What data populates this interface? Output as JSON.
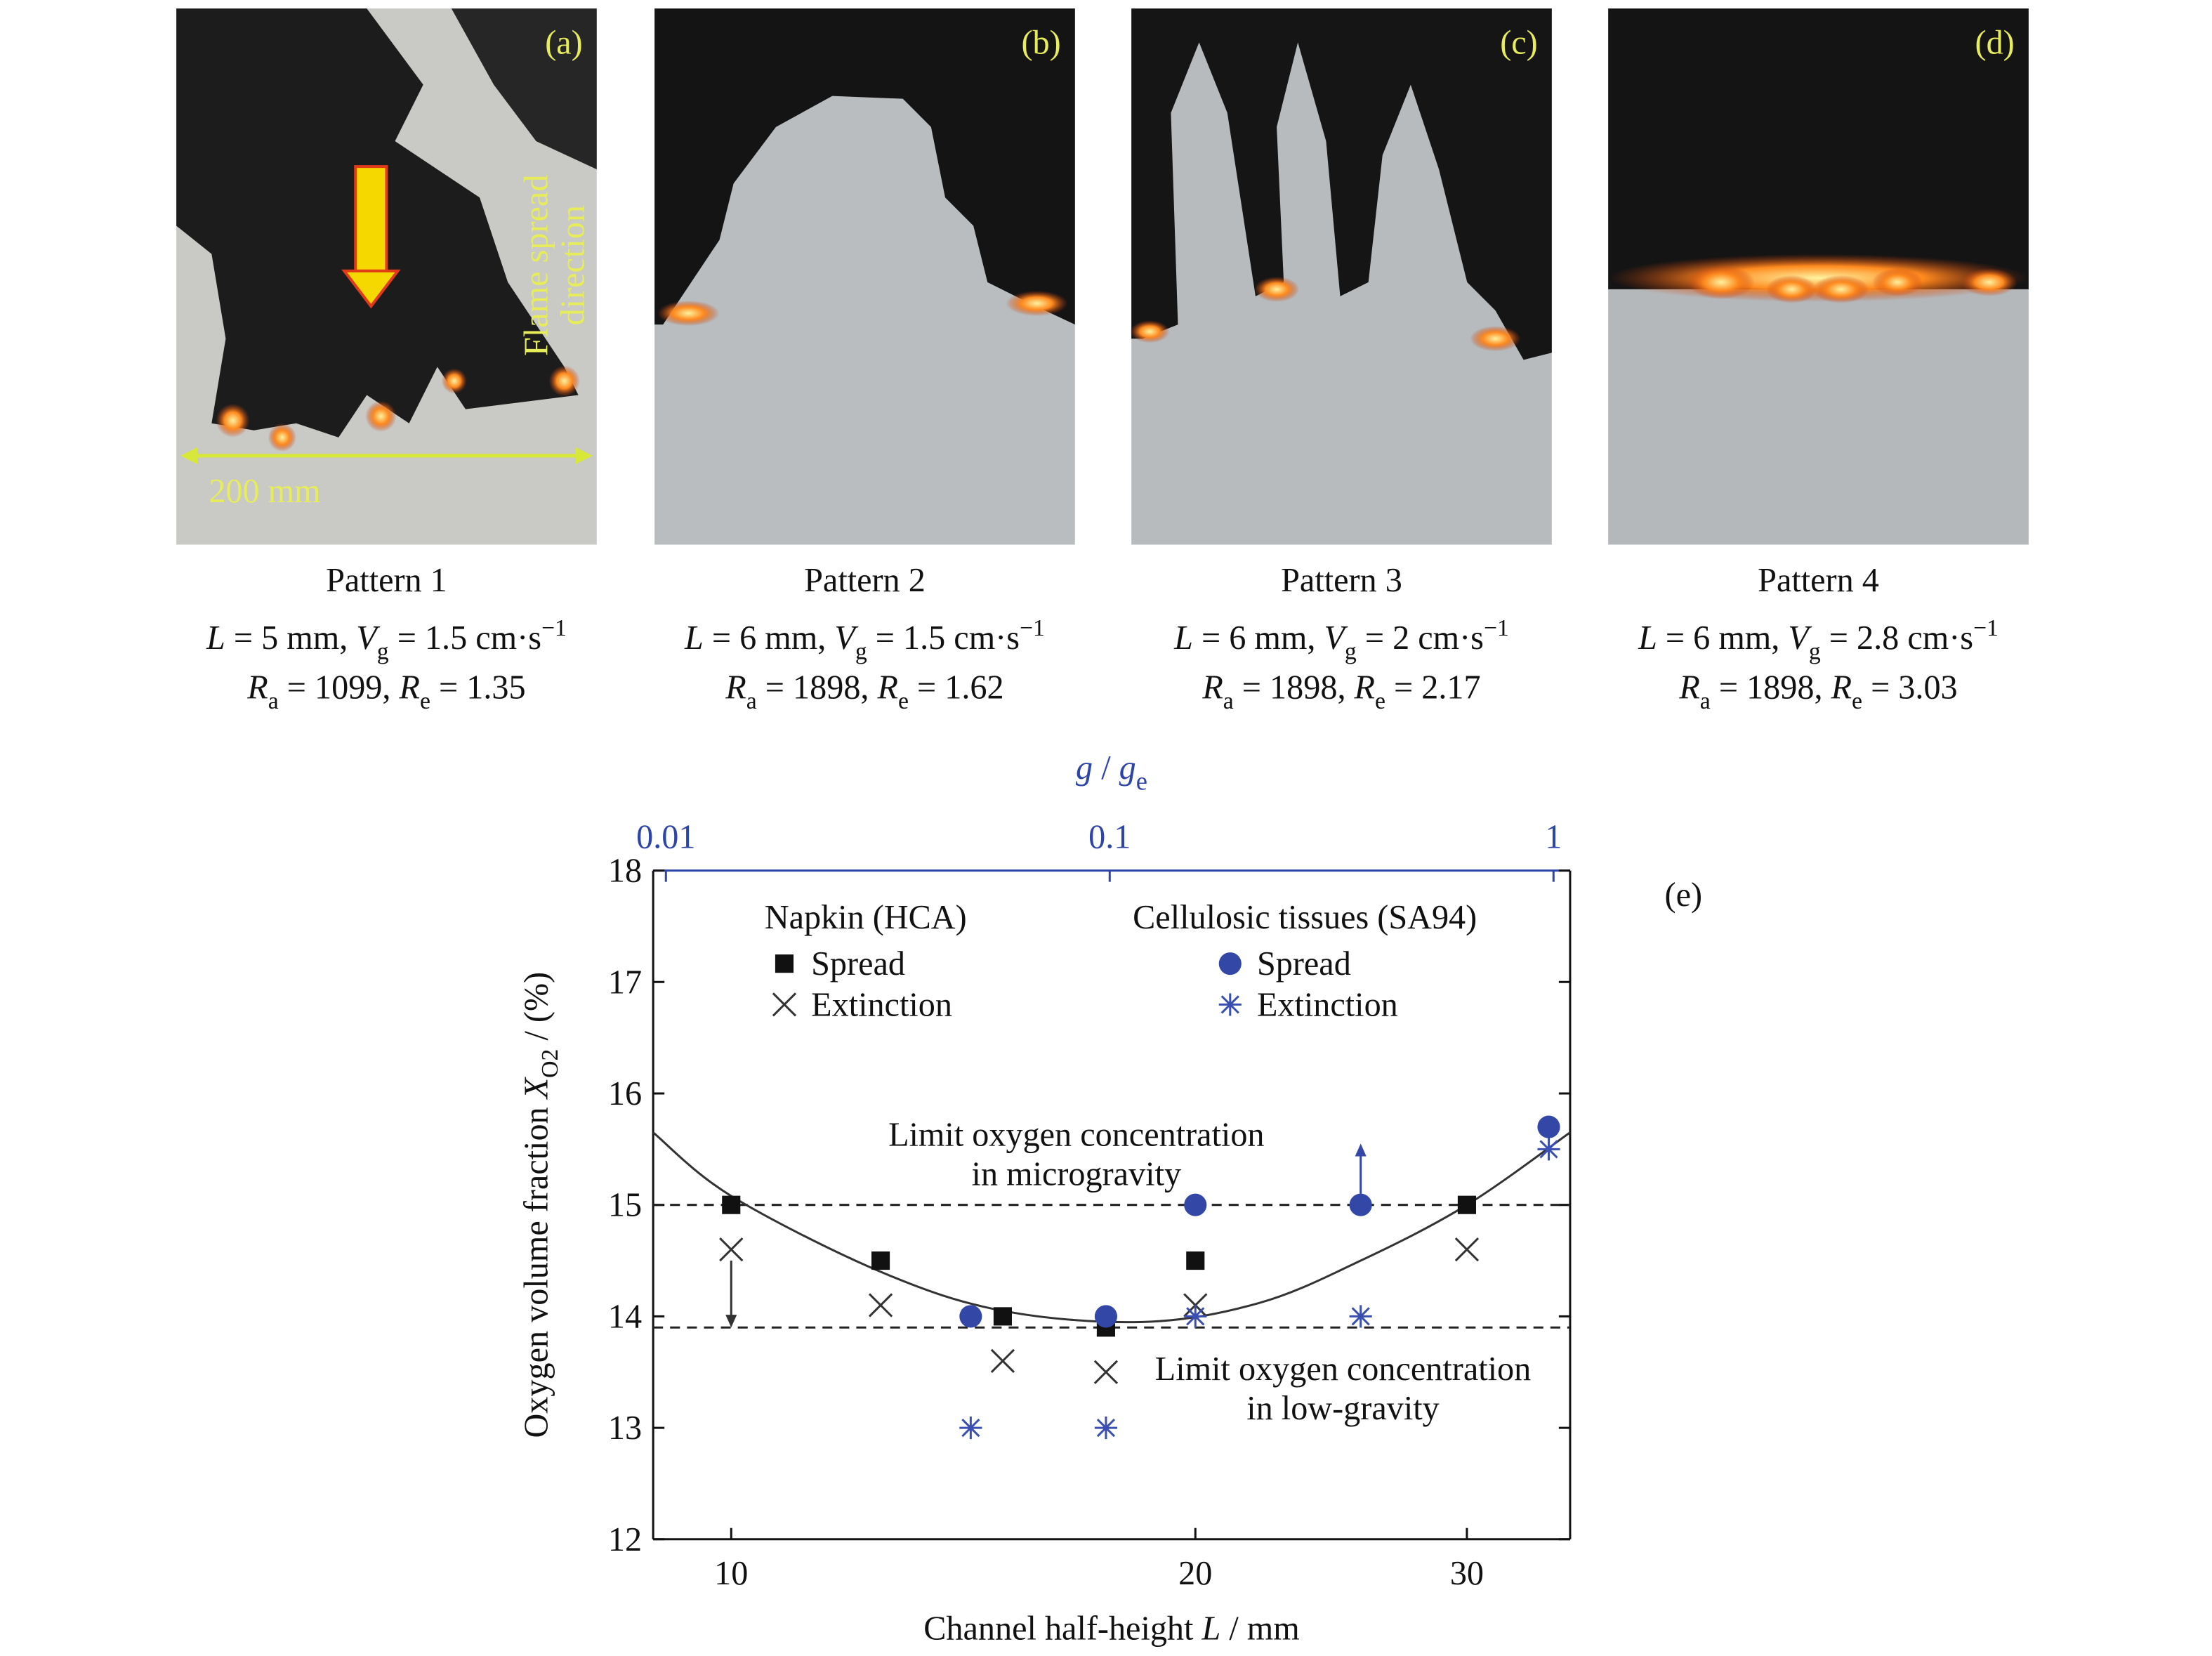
{
  "panels": [
    {
      "label": "(a)",
      "direction_label": [
        "Flame spread",
        "direction"
      ],
      "scale_label": "200 mm",
      "caption": {
        "title": "Pattern 1",
        "line2": [
          {
            "text": "L",
            "style": "i"
          },
          {
            "text": " = 5 mm, "
          },
          {
            "text": "V",
            "style": "i"
          },
          {
            "text": "g",
            "style": "sub"
          },
          {
            "text": " = 1.5 cm·s"
          },
          {
            "text": "−1",
            "style": "sup"
          }
        ],
        "line3": [
          {
            "text": "R",
            "style": "i"
          },
          {
            "text": "a",
            "style": "sub"
          },
          {
            "text": " = 1099, "
          },
          {
            "text": "R",
            "style": "i"
          },
          {
            "text": "e",
            "style": "sub"
          },
          {
            "text": " = 1.35"
          }
        ]
      }
    },
    {
      "label": "(b)",
      "caption": {
        "title": "Pattern 2",
        "line2": [
          {
            "text": "L",
            "style": "i"
          },
          {
            "text": " = 6 mm, "
          },
          {
            "text": "V",
            "style": "i"
          },
          {
            "text": "g",
            "style": "sub"
          },
          {
            "text": " = 1.5 cm·s"
          },
          {
            "text": "−1",
            "style": "sup"
          }
        ],
        "line3": [
          {
            "text": "R",
            "style": "i"
          },
          {
            "text": "a",
            "style": "sub"
          },
          {
            "text": " = 1898, "
          },
          {
            "text": "R",
            "style": "i"
          },
          {
            "text": "e",
            "style": "sub"
          },
          {
            "text": " = 1.62"
          }
        ]
      }
    },
    {
      "label": "(c)",
      "caption": {
        "title": "Pattern 3",
        "line2": [
          {
            "text": "L",
            "style": "i"
          },
          {
            "text": " = 6 mm, "
          },
          {
            "text": "V",
            "style": "i"
          },
          {
            "text": "g",
            "style": "sub"
          },
          {
            "text": " = 2 cm·s"
          },
          {
            "text": "−1",
            "style": "sup"
          }
        ],
        "line3": [
          {
            "text": "R",
            "style": "i"
          },
          {
            "text": "a",
            "style": "sub"
          },
          {
            "text": " = 1898, "
          },
          {
            "text": "R",
            "style": "i"
          },
          {
            "text": "e",
            "style": "sub"
          },
          {
            "text": " = 2.17"
          }
        ]
      }
    },
    {
      "label": "(d)",
      "caption": {
        "title": "Pattern 4",
        "line2": [
          {
            "text": "L",
            "style": "i"
          },
          {
            "text": " = 6 mm, "
          },
          {
            "text": "V",
            "style": "i"
          },
          {
            "text": "g",
            "style": "sub"
          },
          {
            "text": " = 2.8 cm·s"
          },
          {
            "text": "−1",
            "style": "sup"
          }
        ],
        "line3": [
          {
            "text": "R",
            "style": "i"
          },
          {
            "text": "a",
            "style": "sub"
          },
          {
            "text": " = 1898, "
          },
          {
            "text": "R",
            "style": "i"
          },
          {
            "text": "e",
            "style": "sub"
          },
          {
            "text": " = 3.03"
          }
        ]
      }
    }
  ],
  "chart_data": {
    "type": "scatter",
    "panel_label": "(e)",
    "x_label": [
      {
        "text": "Channel half-height "
      },
      {
        "text": "L",
        "style": "i"
      },
      {
        "text": " / mm"
      }
    ],
    "y_label": [
      {
        "text": "Oxygen volume fraction  "
      },
      {
        "text": "X",
        "style": "i"
      },
      {
        "text": "O2",
        "style": "sub"
      },
      {
        "text": " / (%)"
      }
    ],
    "x2_label": [
      {
        "text": "g",
        "style": "i"
      },
      {
        "text": " / "
      },
      {
        "text": "g",
        "style": "i"
      },
      {
        "text": "e",
        "style": "sub"
      }
    ],
    "xscale": "log",
    "xlim": [
      8.9,
      35
    ],
    "xticks": [
      10,
      20,
      30
    ],
    "x2scale": "log",
    "x2lim": [
      0.00936,
      1.09
    ],
    "x2ticks": [
      0.01,
      0.1,
      1
    ],
    "x2_color": "#2e45a8",
    "ylim": [
      12,
      18
    ],
    "yticks": [
      12,
      13,
      14,
      15,
      16,
      17,
      18
    ],
    "groups": [
      {
        "name": "Napkin (HCA)",
        "series": [
          {
            "name": "Spread",
            "marker": "square",
            "color": "#111111",
            "x": [
              10,
              12.5,
              15,
              17.5,
              20,
              30
            ],
            "values": [
              15,
              14.5,
              14,
              13.9,
              14.5,
              15
            ]
          },
          {
            "name": "Extinction",
            "marker": "cross",
            "color": "#333333",
            "x": [
              10,
              12.5,
              15,
              17.5,
              20,
              30
            ],
            "values": [
              14.6,
              14.1,
              13.6,
              13.5,
              14.1,
              14.6
            ]
          }
        ]
      },
      {
        "name": "Cellulosic tissues (SA94)",
        "series": [
          {
            "name": "Spread",
            "marker": "circle",
            "color": "#3347a6",
            "x": [
              14.3,
              17.5,
              20,
              25.6,
              33.9
            ],
            "values": [
              14,
              14,
              15,
              15,
              15.7
            ]
          },
          {
            "name": "Extinction",
            "marker": "asterisk",
            "color": "#3a4fb0",
            "x": [
              14.3,
              17.5,
              20,
              25.6,
              33.9
            ],
            "values": [
              13,
              13,
              14,
              14,
              15.5
            ]
          }
        ]
      }
    ],
    "fit": {
      "color": "#333333",
      "x": [
        8.9,
        10,
        12.5,
        15,
        18.5,
        22,
        25.6,
        30,
        35
      ],
      "values": [
        15.65,
        15.08,
        14.4,
        14.05,
        13.95,
        14.12,
        14.5,
        15.0,
        15.65
      ]
    },
    "ref_lines": [
      15,
      13.9
    ],
    "arrows": [
      {
        "x": 10,
        "from": 14.5,
        "to": 13.9,
        "color": "#333333"
      },
      {
        "x": 25.6,
        "from": 15.1,
        "to": 15.55,
        "color": "#3347a6"
      }
    ],
    "annotations": [
      [
        "Limit oxygen concentration",
        "in microgravity"
      ],
      [
        "Limit oxygen concentration",
        "in low-gravity"
      ]
    ]
  }
}
